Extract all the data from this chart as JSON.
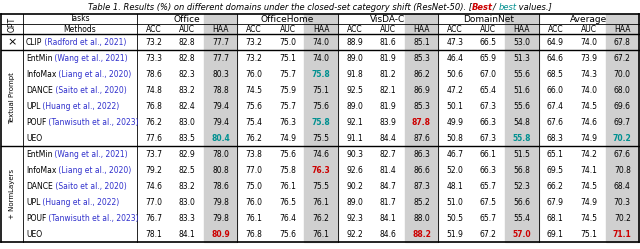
{
  "title_prefix": "Table 1. Results (%) on different domains under the closed-set category shift (ResNet-50). [",
  "title_best_red": "Best",
  "title_slash": "/ ",
  "title_best_cyan": "best",
  "title_suffix": " values.]",
  "group_names": [
    "Office",
    "OfficeHome",
    "VisDA-C",
    "DomainNet",
    "Average"
  ],
  "subheaders": [
    "ACC",
    "AUC",
    "HAA"
  ],
  "rows": [
    {
      "section": "clip",
      "opt_label": "×",
      "method_name": "CLIP",
      "method_cite": " (Radford et al., 2021)",
      "values": [
        73.2,
        82.8,
        77.7,
        73.2,
        75.0,
        74.0,
        88.9,
        81.6,
        85.1,
        47.3,
        66.5,
        53.0,
        64.9,
        74.0,
        67.8
      ],
      "special": {}
    },
    {
      "section": "textual",
      "opt_label": "Textual Prompt",
      "method_name": "EntMin",
      "method_cite": " (Wang et al., 2021)",
      "values": [
        73.3,
        82.8,
        77.7,
        73.2,
        75.1,
        74.0,
        89.0,
        81.9,
        85.3,
        46.4,
        65.9,
        51.3,
        64.6,
        73.9,
        67.2
      ],
      "special": {}
    },
    {
      "section": "textual",
      "opt_label": "Textual Prompt",
      "method_name": "InfoMax",
      "method_cite": " (Liang et al., 2020)",
      "values": [
        78.6,
        82.3,
        80.3,
        76.0,
        75.7,
        75.8,
        91.8,
        81.2,
        86.2,
        50.6,
        67.0,
        55.6,
        68.5,
        74.3,
        70.0
      ],
      "special": {
        "5": "cyan"
      }
    },
    {
      "section": "textual",
      "opt_label": "Textual Prompt",
      "method_name": "DANCE",
      "method_cite": " (Saito et al., 2020)",
      "values": [
        74.8,
        83.2,
        78.8,
        74.5,
        75.9,
        75.1,
        92.5,
        82.1,
        86.9,
        47.2,
        65.4,
        51.6,
        66.0,
        74.0,
        68.0
      ],
      "special": {}
    },
    {
      "section": "textual",
      "opt_label": "Textual Prompt",
      "method_name": "UPL",
      "method_cite": " (Huang et al., 2022)",
      "values": [
        76.8,
        82.4,
        79.4,
        75.6,
        75.7,
        75.6,
        89.0,
        81.9,
        85.3,
        50.1,
        67.3,
        55.6,
        67.4,
        74.5,
        69.6
      ],
      "special": {}
    },
    {
      "section": "textual",
      "opt_label": "Textual Prompt",
      "method_name": "POUF",
      "method_cite": " (Tanwisuth et al., 2023)",
      "values": [
        76.2,
        83.0,
        79.4,
        75.4,
        76.3,
        75.8,
        92.1,
        83.9,
        87.8,
        49.9,
        66.3,
        54.8,
        67.6,
        74.6,
        69.7
      ],
      "special": {
        "5": "cyan",
        "8": "red"
      }
    },
    {
      "section": "textual",
      "opt_label": "Textual Prompt",
      "method_name": "UEO",
      "method_cite": "",
      "values": [
        77.6,
        83.5,
        80.4,
        76.2,
        74.9,
        75.5,
        91.1,
        84.4,
        87.6,
        50.8,
        67.3,
        55.8,
        68.3,
        74.9,
        70.2
      ],
      "special": {
        "2": "cyan",
        "11": "cyan",
        "14": "cyan"
      }
    },
    {
      "section": "normlayers",
      "opt_label": "+ NormLayers",
      "method_name": "EntMin",
      "method_cite": " (Wang et al., 2021)",
      "values": [
        73.7,
        82.9,
        78.0,
        73.8,
        75.6,
        74.6,
        90.3,
        82.7,
        86.3,
        46.7,
        66.1,
        51.5,
        65.1,
        74.2,
        67.6
      ],
      "special": {}
    },
    {
      "section": "normlayers",
      "opt_label": "+ NormLayers",
      "method_name": "InfoMax",
      "method_cite": " (Liang et al., 2020)",
      "values": [
        79.2,
        82.5,
        80.8,
        77.0,
        75.8,
        76.3,
        92.6,
        81.4,
        86.6,
        52.0,
        66.3,
        56.8,
        69.5,
        74.1,
        70.8
      ],
      "special": {
        "5": "red"
      }
    },
    {
      "section": "normlayers",
      "opt_label": "+ NormLayers",
      "method_name": "DANCE",
      "method_cite": " (Saito et al., 2020)",
      "values": [
        74.6,
        83.2,
        78.6,
        75.0,
        76.1,
        75.5,
        90.2,
        84.7,
        87.3,
        48.1,
        65.7,
        52.3,
        66.2,
        74.5,
        68.4
      ],
      "special": {}
    },
    {
      "section": "normlayers",
      "opt_label": "+ NormLayers",
      "method_name": "UPL",
      "method_cite": " (Huang et al., 2022)",
      "values": [
        77.0,
        83.0,
        79.8,
        76.0,
        76.5,
        76.1,
        89.0,
        81.7,
        85.2,
        51.0,
        67.5,
        56.6,
        67.9,
        74.9,
        70.3
      ],
      "special": {}
    },
    {
      "section": "normlayers",
      "opt_label": "+ NormLayers",
      "method_name": "POUF",
      "method_cite": " (Tanwisuth et al., 2023)",
      "values": [
        76.7,
        83.3,
        79.8,
        76.1,
        76.4,
        76.2,
        92.3,
        84.1,
        88.0,
        50.5,
        65.7,
        55.4,
        68.1,
        74.5,
        70.2
      ],
      "special": {}
    },
    {
      "section": "normlayers",
      "opt_label": "+ NormLayers",
      "method_name": "UEO",
      "method_cite": "",
      "values": [
        78.1,
        84.1,
        80.9,
        76.8,
        75.6,
        76.1,
        92.2,
        84.6,
        88.2,
        51.9,
        67.2,
        57.0,
        69.1,
        75.1,
        71.1
      ],
      "special": {
        "2": "red",
        "8": "red",
        "11": "red",
        "14": "red"
      }
    }
  ],
  "haa_bg": "#d0d0d0",
  "cite_color": "#3030cc",
  "cyan_color": "#009090",
  "red_color": "#cc0000"
}
